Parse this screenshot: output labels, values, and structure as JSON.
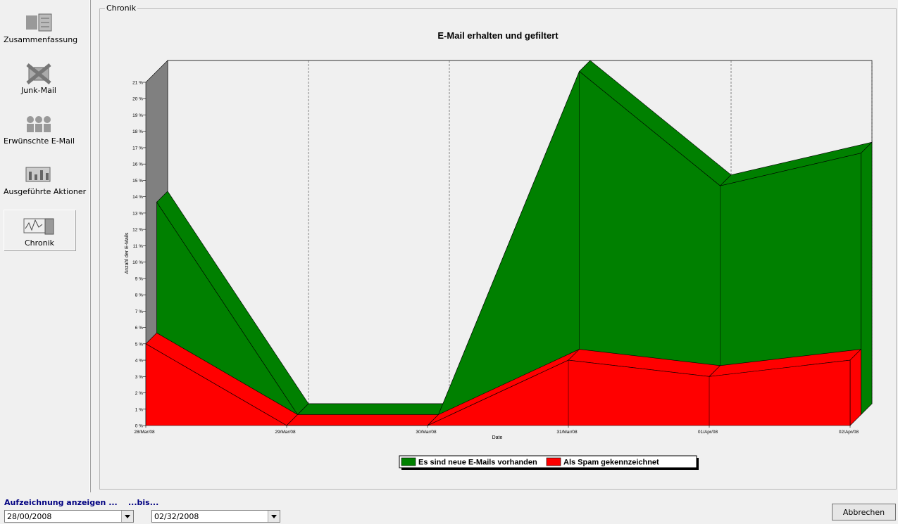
{
  "sidebar": {
    "items": [
      {
        "label": "Zusammenfassung"
      },
      {
        "label": "Junk-Mail"
      },
      {
        "label": "Erwünschte E-Mail"
      },
      {
        "label": "Ausgeführte Aktioner"
      },
      {
        "label": "Chronik"
      }
    ]
  },
  "group": {
    "title": "Chronik"
  },
  "chart_data": {
    "type": "area3d",
    "title": "E-Mail erhalten und gefiltert",
    "x_label": "Date",
    "y_label": "Anzahl der E-Mails",
    "categories": [
      "28/Mar/08",
      "29/Mar/08",
      "30/Mar/08",
      "31/Mar/08",
      "01/Apr/08",
      "02/Apr/08"
    ],
    "series": [
      {
        "name": "Es sind neue E-Mails vorhanden",
        "color": "#008000",
        "values": [
          13,
          0,
          0,
          21,
          14,
          16
        ]
      },
      {
        "name": "Als Spam gekennzeichnet",
        "color": "#ff0000",
        "values": [
          5,
          0,
          0,
          4,
          3,
          4
        ]
      }
    ],
    "ylim": [
      0,
      21
    ],
    "yticks": [
      {
        "value": 0,
        "label": "0 %"
      },
      {
        "value": 1,
        "label": "1 %"
      },
      {
        "value": 2,
        "label": "2 %"
      },
      {
        "value": 3,
        "label": "3 %"
      },
      {
        "value": 4,
        "label": "4 %"
      },
      {
        "value": 5,
        "label": "5 %"
      },
      {
        "value": 6,
        "label": "6 %"
      },
      {
        "value": 7,
        "label": "7 %"
      },
      {
        "value": 8,
        "label": "8 %"
      },
      {
        "value": 9,
        "label": "9 %"
      },
      {
        "value": 10,
        "label": "10 %"
      },
      {
        "value": 11,
        "label": "11 %"
      },
      {
        "value": 12,
        "label": "12 %"
      },
      {
        "value": 13,
        "label": "13 %"
      },
      {
        "value": 14,
        "label": "14 %"
      },
      {
        "value": 15,
        "label": "15 %"
      },
      {
        "value": 16,
        "label": "16 %"
      },
      {
        "value": 17,
        "label": "17 %"
      },
      {
        "value": 18,
        "label": "18 %"
      },
      {
        "value": 19,
        "label": "19 %"
      },
      {
        "value": 20,
        "label": "20 %"
      },
      {
        "value": 21,
        "label": "21 %"
      }
    ],
    "grid": true
  },
  "controls": {
    "range_label": "Aufzeichnung anzeigen ...",
    "to_label": "...bis...",
    "from_date": "28/00/2008",
    "to_date": "02/32/2008",
    "cancel_button": "Abbrechen"
  }
}
